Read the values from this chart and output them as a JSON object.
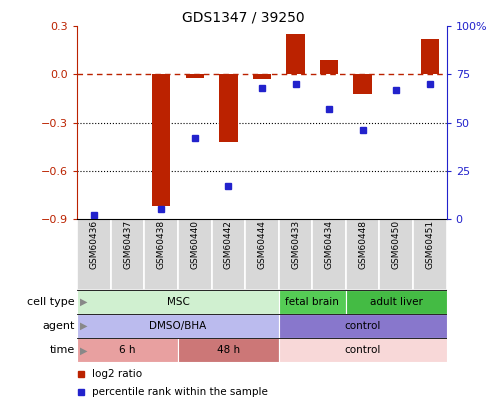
{
  "title": "GDS1347 / 39250",
  "samples": [
    "GSM60436",
    "GSM60437",
    "GSM60438",
    "GSM60440",
    "GSM60442",
    "GSM60444",
    "GSM60433",
    "GSM60434",
    "GSM60448",
    "GSM60450",
    "GSM60451"
  ],
  "log2_ratio": [
    0.0,
    0.0,
    -0.82,
    -0.02,
    -0.42,
    -0.03,
    0.25,
    0.09,
    -0.12,
    0.0,
    0.22
  ],
  "percentile_rank": [
    2,
    null,
    5,
    42,
    17,
    68,
    70,
    57,
    46,
    67,
    70
  ],
  "ylim_left": [
    -0.9,
    0.3
  ],
  "ylim_right": [
    0,
    100
  ],
  "yticks_left": [
    -0.9,
    -0.6,
    -0.3,
    0.0,
    0.3
  ],
  "yticks_right": [
    0,
    25,
    50,
    75,
    100
  ],
  "ytick_labels_right": [
    "0",
    "25",
    "50",
    "75",
    "100%"
  ],
  "bar_color": "#bb2200",
  "dot_color": "#2222cc",
  "hline_color": "#bb2200",
  "cell_type_groups": [
    {
      "label": "MSC",
      "start": 0,
      "end": 5,
      "color": "#d0f0d0"
    },
    {
      "label": "fetal brain",
      "start": 6,
      "end": 7,
      "color": "#55cc55"
    },
    {
      "label": "adult liver",
      "start": 8,
      "end": 10,
      "color": "#44bb44"
    }
  ],
  "agent_groups": [
    {
      "label": "DMSO/BHA",
      "start": 0,
      "end": 5,
      "color": "#bbbbee"
    },
    {
      "label": "control",
      "start": 6,
      "end": 10,
      "color": "#8877cc"
    }
  ],
  "time_groups": [
    {
      "label": "6 h",
      "start": 0,
      "end": 2,
      "color": "#e8a0a0"
    },
    {
      "label": "48 h",
      "start": 3,
      "end": 5,
      "color": "#cc7777"
    },
    {
      "label": "control",
      "start": 6,
      "end": 10,
      "color": "#f8d8d8"
    }
  ],
  "row_labels": [
    "cell type",
    "agent",
    "time"
  ],
  "legend_items": [
    {
      "label": "log2 ratio",
      "color": "#bb2200"
    },
    {
      "label": "percentile rank within the sample",
      "color": "#2222cc"
    }
  ]
}
